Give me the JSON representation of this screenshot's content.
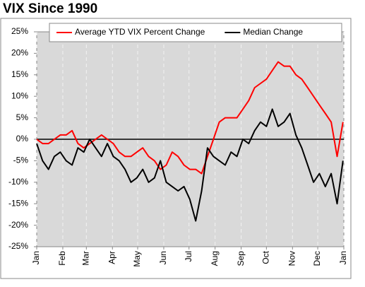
{
  "chart_data": {
    "type": "line",
    "title": "VIX Since 1990",
    "x": [
      0,
      7,
      14,
      21,
      28,
      35,
      42,
      49,
      56,
      63,
      70,
      77,
      84,
      91,
      98,
      105,
      112,
      119,
      126,
      133,
      140,
      147,
      154,
      161,
      168,
      175,
      182,
      189,
      196,
      203,
      210,
      217,
      224,
      231,
      238,
      245,
      252,
      259,
      266,
      273,
      280,
      287,
      294,
      301,
      308,
      315,
      322,
      329,
      336,
      343,
      350,
      357,
      364
    ],
    "series": [
      {
        "name": "Average YTD VIX Percent Change",
        "color": "#ff0000",
        "values": [
          0,
          -1,
          -1,
          0,
          1,
          1,
          2,
          -1,
          -2,
          -1,
          0,
          1,
          0,
          -1,
          -3,
          -4,
          -4,
          -3,
          -2,
          -4,
          -5,
          -7,
          -6,
          -3,
          -4,
          -6,
          -7,
          -7,
          -8,
          -4,
          0,
          4,
          5,
          5,
          5,
          7,
          9,
          12,
          13,
          14,
          16,
          18,
          17,
          17,
          15,
          14,
          12,
          10,
          8,
          6,
          4,
          -4,
          4
        ]
      },
      {
        "name": "Median Change",
        "color": "#000000",
        "values": [
          -1,
          -5,
          -7,
          -4,
          -3,
          -5,
          -6,
          -2,
          -3,
          0,
          -2,
          -4,
          -1,
          -4,
          -5,
          -7,
          -10,
          -9,
          -7,
          -10,
          -9,
          -5,
          -10,
          -11,
          -12,
          -11,
          -14,
          -19,
          -12,
          -2,
          -4,
          -5,
          -6,
          -3,
          -4,
          0,
          -1,
          2,
          4,
          3,
          7,
          3,
          4,
          6,
          1,
          -2,
          -6,
          -10,
          -8,
          -11,
          -8,
          -15,
          -5
        ]
      }
    ],
    "xlim": [
      0,
      365
    ],
    "xticks": [
      {
        "value": 0,
        "label": "Jan"
      },
      {
        "value": 31,
        "label": "Feb"
      },
      {
        "value": 59,
        "label": "Mar"
      },
      {
        "value": 90,
        "label": "Apr"
      },
      {
        "value": 120,
        "label": "May"
      },
      {
        "value": 151,
        "label": "Jun"
      },
      {
        "value": 181,
        "label": "Jul"
      },
      {
        "value": 212,
        "label": "Aug"
      },
      {
        "value": 243,
        "label": "Sep"
      },
      {
        "value": 273,
        "label": "Oct"
      },
      {
        "value": 304,
        "label": "Nov"
      },
      {
        "value": 334,
        "label": "Dec"
      },
      {
        "value": 365,
        "label": "Jan"
      }
    ],
    "ylim": [
      -25,
      25
    ],
    "yticks": [
      {
        "value": 25,
        "label": "25%"
      },
      {
        "value": 20,
        "label": "20%"
      },
      {
        "value": 15,
        "label": "15%"
      },
      {
        "value": 10,
        "label": "10%"
      },
      {
        "value": 5,
        "label": "5%"
      },
      {
        "value": 0,
        "label": "0%"
      },
      {
        "value": -5,
        "label": "-5%"
      },
      {
        "value": -10,
        "label": "-10%"
      },
      {
        "value": -15,
        "label": "-15%"
      },
      {
        "value": -20,
        "label": "-20%"
      },
      {
        "value": -25,
        "label": "-25%"
      }
    ],
    "grid": true,
    "legend": "top",
    "plot_background": "#d9d9d9"
  }
}
